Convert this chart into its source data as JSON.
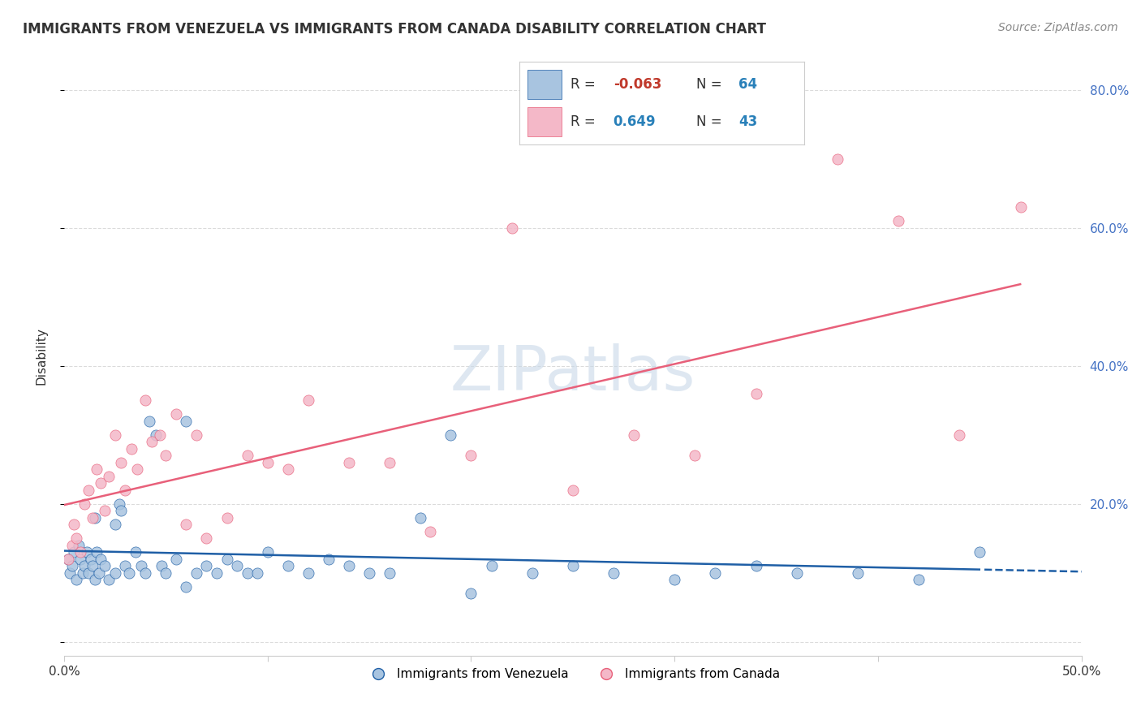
{
  "title": "IMMIGRANTS FROM VENEZUELA VS IMMIGRANTS FROM CANADA DISABILITY CORRELATION CHART",
  "source": "Source: ZipAtlas.com",
  "ylabel": "Disability",
  "xlim": [
    0.0,
    0.5
  ],
  "ylim": [
    -0.02,
    0.85
  ],
  "ytick_labels": [
    "",
    "20.0%",
    "40.0%",
    "60.0%",
    "80.0%"
  ],
  "ytick_vals": [
    0.0,
    0.2,
    0.4,
    0.6,
    0.8
  ],
  "xtick_vals": [
    0.0,
    0.1,
    0.2,
    0.3,
    0.4,
    0.5
  ],
  "color_venezuela": "#a8c4e0",
  "color_canada": "#f4b8c8",
  "line_color_venezuela": "#1f5fa6",
  "line_color_canada": "#e8607a",
  "background_color": "#ffffff",
  "grid_color": "#cccccc",
  "venezuela_x": [
    0.002,
    0.003,
    0.004,
    0.005,
    0.006,
    0.007,
    0.008,
    0.009,
    0.01,
    0.011,
    0.012,
    0.013,
    0.014,
    0.015,
    0.016,
    0.017,
    0.018,
    0.02,
    0.022,
    0.025,
    0.027,
    0.028,
    0.03,
    0.032,
    0.035,
    0.038,
    0.04,
    0.042,
    0.045,
    0.048,
    0.05,
    0.055,
    0.06,
    0.065,
    0.07,
    0.075,
    0.08,
    0.085,
    0.09,
    0.095,
    0.1,
    0.11,
    0.12,
    0.13,
    0.14,
    0.15,
    0.16,
    0.175,
    0.19,
    0.21,
    0.23,
    0.25,
    0.27,
    0.3,
    0.32,
    0.34,
    0.36,
    0.39,
    0.42,
    0.45,
    0.015,
    0.025,
    0.06,
    0.2
  ],
  "venezuela_y": [
    0.12,
    0.1,
    0.11,
    0.13,
    0.09,
    0.14,
    0.12,
    0.1,
    0.11,
    0.13,
    0.1,
    0.12,
    0.11,
    0.09,
    0.13,
    0.1,
    0.12,
    0.11,
    0.09,
    0.1,
    0.2,
    0.19,
    0.11,
    0.1,
    0.13,
    0.11,
    0.1,
    0.32,
    0.3,
    0.11,
    0.1,
    0.12,
    0.32,
    0.1,
    0.11,
    0.1,
    0.12,
    0.11,
    0.1,
    0.1,
    0.13,
    0.11,
    0.1,
    0.12,
    0.11,
    0.1,
    0.1,
    0.18,
    0.3,
    0.11,
    0.1,
    0.11,
    0.1,
    0.09,
    0.1,
    0.11,
    0.1,
    0.1,
    0.09,
    0.13,
    0.18,
    0.17,
    0.08,
    0.07
  ],
  "canada_x": [
    0.002,
    0.004,
    0.005,
    0.006,
    0.008,
    0.01,
    0.012,
    0.014,
    0.016,
    0.018,
    0.02,
    0.022,
    0.025,
    0.028,
    0.03,
    0.033,
    0.036,
    0.04,
    0.043,
    0.047,
    0.05,
    0.055,
    0.06,
    0.065,
    0.07,
    0.08,
    0.09,
    0.1,
    0.11,
    0.12,
    0.14,
    0.16,
    0.18,
    0.2,
    0.22,
    0.25,
    0.28,
    0.31,
    0.34,
    0.38,
    0.41,
    0.44,
    0.47
  ],
  "canada_y": [
    0.12,
    0.14,
    0.17,
    0.15,
    0.13,
    0.2,
    0.22,
    0.18,
    0.25,
    0.23,
    0.19,
    0.24,
    0.3,
    0.26,
    0.22,
    0.28,
    0.25,
    0.35,
    0.29,
    0.3,
    0.27,
    0.33,
    0.17,
    0.3,
    0.15,
    0.18,
    0.27,
    0.26,
    0.25,
    0.35,
    0.26,
    0.26,
    0.16,
    0.27,
    0.6,
    0.22,
    0.3,
    0.27,
    0.36,
    0.7,
    0.61,
    0.3,
    0.63
  ]
}
